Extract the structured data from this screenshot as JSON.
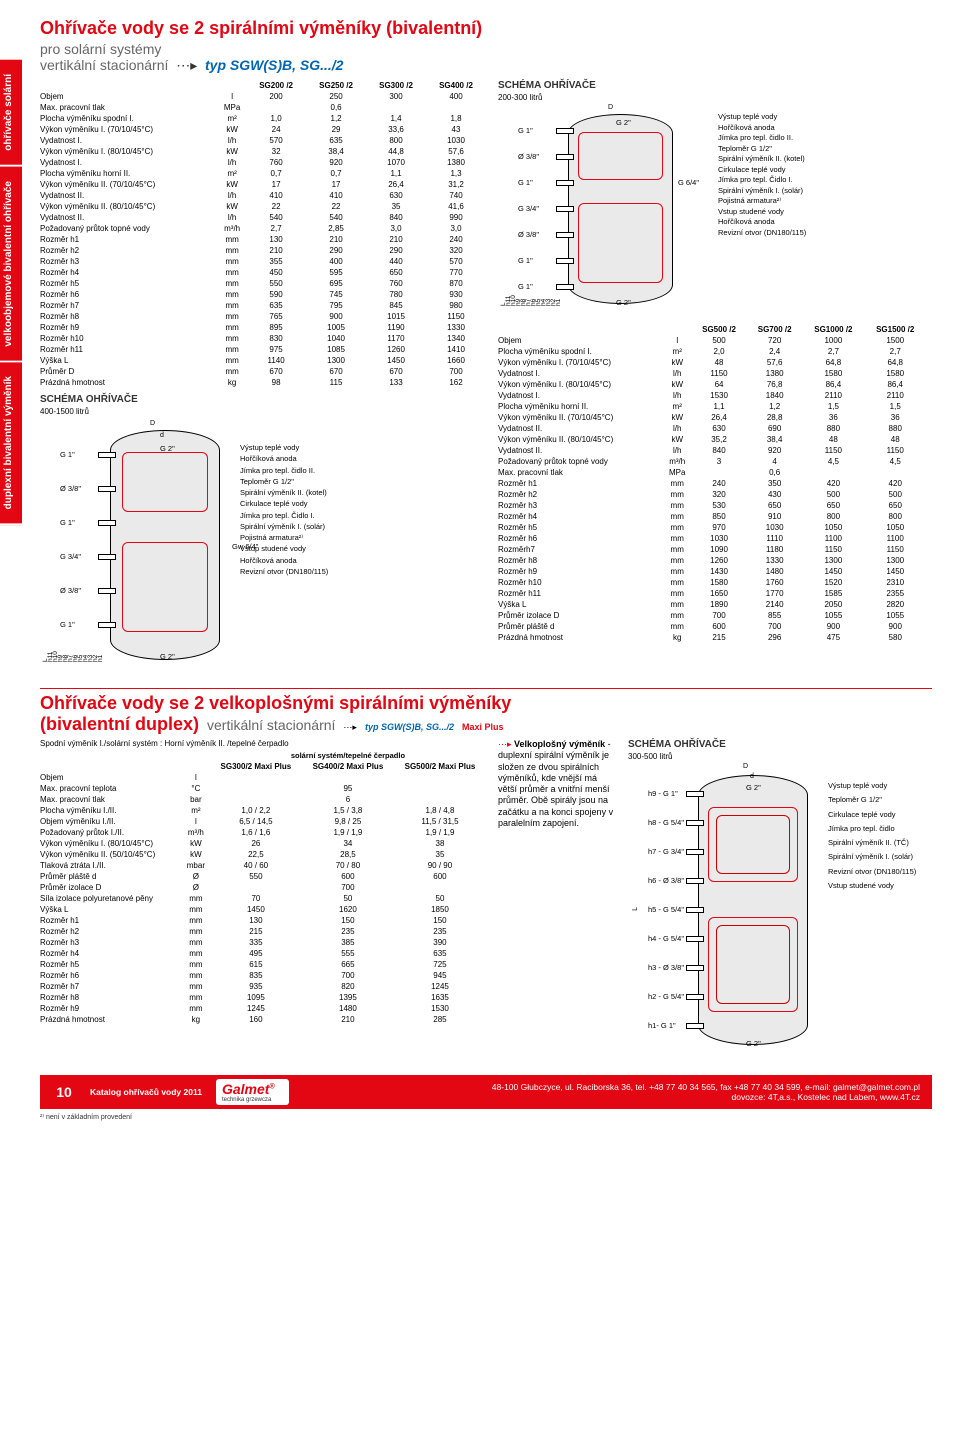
{
  "colors": {
    "brand_red": "#e30613",
    "brand_blue": "#0066b3",
    "gray": "#666"
  },
  "side_tabs": [
    "ohřívače solární",
    "velkoobjemové bivalentní ohřívače",
    "duplexní bivalentní výměník"
  ],
  "section1": {
    "title": "Ohřívače vody se 2 spirálními výměníky (bivalentní)",
    "sub1": "pro solární systémy",
    "sub2": "vertikální stacionární",
    "type": "typ SGW(S)B, SG.../2",
    "tableA": {
      "headers": [
        "SG200 /2",
        "SG250 /2",
        "SG300 /2",
        "SG400 /2"
      ],
      "rows": [
        [
          "Objem",
          "l",
          "200",
          "250",
          "300",
          "400"
        ],
        [
          "Max. pracovní tlak",
          "MPa",
          "",
          "0,6",
          "",
          ""
        ],
        [
          "Plocha výměníku spodní I.",
          "m²",
          "1,0",
          "1,2",
          "1,4",
          "1,8"
        ],
        [
          "Výkon výměníku I. (70/10/45°C)",
          "kW",
          "24",
          "29",
          "33,6",
          "43"
        ],
        [
          "Vydatnost I.",
          "l/h",
          "570",
          "635",
          "800",
          "1030"
        ],
        [
          "Výkon výměníku I. (80/10/45°C)",
          "kW",
          "32",
          "38,4",
          "44,8",
          "57,6"
        ],
        [
          "Vydatnost I.",
          "l/h",
          "760",
          "920",
          "1070",
          "1380"
        ],
        [
          "Plocha výměníku horní II.",
          "m²",
          "0,7",
          "0,7",
          "1,1",
          "1,3"
        ],
        [
          "Výkon výměníku II. (70/10/45°C)",
          "kW",
          "17",
          "17",
          "26,4",
          "31,2"
        ],
        [
          "Vydatnost II.",
          "l/h",
          "410",
          "410",
          "630",
          "740"
        ],
        [
          "Výkon výměníku II. (80/10/45°C)",
          "kW",
          "22",
          "22",
          "35",
          "41,6"
        ],
        [
          "Vydatnost II.",
          "l/h",
          "540",
          "540",
          "840",
          "990"
        ],
        [
          "Požadovaný průtok topné vody",
          "m³/h",
          "2,7",
          "2,85",
          "3,0",
          "3,0"
        ],
        [
          "Rozměr h1",
          "mm",
          "130",
          "210",
          "210",
          "240"
        ],
        [
          "Rozměr h2",
          "mm",
          "210",
          "290",
          "290",
          "320"
        ],
        [
          "Rozměr h3",
          "mm",
          "355",
          "400",
          "440",
          "570"
        ],
        [
          "Rozměr h4",
          "mm",
          "450",
          "595",
          "650",
          "770"
        ],
        [
          "Rozměr h5",
          "mm",
          "550",
          "695",
          "760",
          "870"
        ],
        [
          "Rozměr h6",
          "mm",
          "590",
          "745",
          "780",
          "930"
        ],
        [
          "Rozměr h7",
          "mm",
          "635",
          "795",
          "845",
          "980"
        ],
        [
          "Rozměr h8",
          "mm",
          "765",
          "900",
          "1015",
          "1150"
        ],
        [
          "Rozměr h9",
          "mm",
          "895",
          "1005",
          "1190",
          "1330"
        ],
        [
          "Rozměr h10",
          "mm",
          "830",
          "1040",
          "1170",
          "1340"
        ],
        [
          "Rozměr h11",
          "mm",
          "975",
          "1085",
          "1260",
          "1410"
        ],
        [
          "Výška L",
          "mm",
          "1140",
          "1300",
          "1450",
          "1660"
        ],
        [
          "Průměr D",
          "mm",
          "670",
          "670",
          "670",
          "700"
        ],
        [
          "Prázdná hmotnost",
          "kg",
          "98",
          "115",
          "133",
          "162"
        ]
      ]
    },
    "schemaA_title": "SCHÉMA OHŘÍVAČE",
    "schemaA_note": "400-1500 litrů",
    "schemaB_title": "SCHÉMA OHŘÍVAČE",
    "schemaB_note": "200-300 litrů",
    "legend_right": [
      "Výstup teplé vody",
      "Hořčíková anoda",
      "Jímka pro tepl. čidlo II.",
      "Teploměr G 1/2\"",
      "Spirální výměník II. (kotel)",
      "Cirkulace teplé vody",
      "Jímka pro tepl. Čidlo I.",
      "Spirální výměník I. (solár)",
      "Pojistná armatura²⁾",
      "Vstup studené vody",
      "Hořčíková anoda",
      "Revizní otvor (DN180/115)"
    ],
    "ports_left": [
      "G 1\"",
      "Ø 3/8\"",
      "G 1\"",
      "G 3/4\"",
      "Ø 3/8\"",
      "G 1\""
    ],
    "ports_leftB": [
      "G 1\"",
      "Ø 3/8\"",
      "G 1\"",
      "G 3/4\"",
      "Ø 3/8\"",
      "G 1\"",
      "G 1\""
    ],
    "ports_rightB": [
      "G 6/4\""
    ],
    "top_dims": [
      "D",
      "d",
      "G 2\"",
      "G 2\""
    ],
    "dim_marks": [
      "L",
      "h11",
      "h10",
      "h9",
      "h8",
      "h7",
      "h6",
      "h5",
      "h4",
      "h3",
      "h2",
      "h1"
    ],
    "tableB": {
      "headers": [
        "SG500 /2",
        "SG700 /2",
        "SG1000 /2",
        "SG1500 /2"
      ],
      "rows": [
        [
          "Objem",
          "l",
          "500",
          "720",
          "1000",
          "1500"
        ],
        [
          "Plocha výměníku spodní I.",
          "m²",
          "2,0",
          "2,4",
          "2,7",
          "2,7"
        ],
        [
          "Výkon výměníku I. (70/10/45°C)",
          "kW",
          "48",
          "57,6",
          "64,8",
          "64,8"
        ],
        [
          "Vydatnost I.",
          "l/h",
          "1150",
          "1380",
          "1580",
          "1580"
        ],
        [
          "Výkon výměníku I. (80/10/45°C)",
          "kW",
          "64",
          "76,8",
          "86,4",
          "86,4"
        ],
        [
          "Vydatnost I.",
          "l/h",
          "1530",
          "1840",
          "2110",
          "2110"
        ],
        [
          "Plocha výměníku horní II.",
          "m²",
          "1,1",
          "1,2",
          "1,5",
          "1,5"
        ],
        [
          "Výkon výměníku II. (70/10/45°C)",
          "kW",
          "26,4",
          "28,8",
          "36",
          "36"
        ],
        [
          "Vydatnost II.",
          "l/h",
          "630",
          "690",
          "880",
          "880"
        ],
        [
          "Výkon výměníku II. (80/10/45°C)",
          "kW",
          "35,2",
          "38,4",
          "48",
          "48"
        ],
        [
          "Vydatnost II.",
          "l/h",
          "840",
          "920",
          "1150",
          "1150"
        ],
        [
          "Požadovaný průtok topné vody",
          "m³/h",
          "3",
          "4",
          "4,5",
          "4,5"
        ],
        [
          "Max. pracovní tlak",
          "MPa",
          "",
          "0,6",
          "",
          ""
        ],
        [
          "Rozměr h1",
          "mm",
          "240",
          "350",
          "420",
          "420"
        ],
        [
          "Rozměr h2",
          "mm",
          "320",
          "430",
          "500",
          "500"
        ],
        [
          "Rozměr h3",
          "mm",
          "530",
          "650",
          "650",
          "650"
        ],
        [
          "Rozměr h4",
          "mm",
          "850",
          "910",
          "800",
          "800"
        ],
        [
          "Rozměr h5",
          "mm",
          "970",
          "1030",
          "1050",
          "1050"
        ],
        [
          "Rozměr h6",
          "mm",
          "1030",
          "1110",
          "1100",
          "1100"
        ],
        [
          "Rozměrh7",
          "mm",
          "1090",
          "1180",
          "1150",
          "1150"
        ],
        [
          "Rozměr h8",
          "mm",
          "1260",
          "1330",
          "1300",
          "1300"
        ],
        [
          "Rozměr h9",
          "mm",
          "1430",
          "1480",
          "1450",
          "1450"
        ],
        [
          "Rozměr h10",
          "mm",
          "1580",
          "1760",
          "1520",
          "2310"
        ],
        [
          "Rozměr h11",
          "mm",
          "1650",
          "1770",
          "1585",
          "2355"
        ],
        [
          "Výška L",
          "mm",
          "1890",
          "2140",
          "2050",
          "2820"
        ],
        [
          "Průměr izolace D",
          "mm",
          "700",
          "855",
          "1055",
          "1055"
        ],
        [
          "Průměr pláště d",
          "mm",
          "600",
          "700",
          "900",
          "900"
        ],
        [
          "Prázdná hmotnost",
          "kg",
          "215",
          "296",
          "475",
          "580"
        ]
      ]
    }
  },
  "section2": {
    "title": "Ohřívače vody se 2 velkoplošnými spirálními výměníky",
    "title2": "(bivalentní duplex)",
    "sub": "vertikální stacionární",
    "type": "typ SGW(S)B, SG.../2",
    "type_suffix": "Maxi Plus",
    "note_top": "Spodní výměník I./solární systém : Horní výměník II. /tepelné čerpadlo",
    "col_note": "solární systém/tepelné čerpadlo",
    "box_title": "Velkoplošný výměník",
    "box_text": "- duplexní spirální výměník je složen ze dvou spirálních výměníků, kde vnější má větší průměr a vnitřní menší průměr. Obě spirály jsou na začátku a na konci spojeny v paralelním zapojení.",
    "table": {
      "headers": [
        "SG300/2 Maxi Plus",
        "SG400/2 Maxi Plus",
        "SG500/2 Maxi Plus"
      ],
      "rows": [
        [
          "Objem",
          "l",
          "",
          "",
          ""
        ],
        [
          "Max. pracovní teplota",
          "°C",
          "",
          "95",
          ""
        ],
        [
          "Max. pracovní tlak",
          "bar",
          "",
          "6",
          ""
        ],
        [
          "Plocha výměníku I./II.",
          "m²",
          "1,0 / 2,2",
          "1,5 / 3,8",
          "1,8 / 4,8"
        ],
        [
          "Objem výměníku I./II.",
          "l",
          "6,5 / 14,5",
          "9,8 / 25",
          "11,5 / 31,5"
        ],
        [
          "Požadovaný průtok I./II.",
          "m³/h",
          "1,6 / 1,6",
          "1,9 / 1,9",
          "1,9 / 1,9"
        ],
        [
          "Výkon výměníku I. (80/10/45°C)",
          "kW",
          "26",
          "34",
          "38"
        ],
        [
          "Výkon výměníku II. (50/10/45°C)",
          "kW",
          "22,5",
          "28,5",
          "35"
        ],
        [
          "Tlaková ztráta I./II.",
          "mbar",
          "40 / 60",
          "70 / 80",
          "90 / 90"
        ],
        [
          "Průměr pláště d",
          "Ø",
          "550",
          "600",
          "600"
        ],
        [
          "Průměr izolace D",
          "Ø",
          "",
          "700",
          ""
        ],
        [
          "Síla izolace polyuretanové pěny",
          "mm",
          "70",
          "50",
          "50"
        ],
        [
          "Výška L",
          "mm",
          "1450",
          "1620",
          "1850"
        ],
        [
          "Rozměr h1",
          "mm",
          "130",
          "150",
          "150"
        ],
        [
          "Rozměr h2",
          "mm",
          "215",
          "235",
          "235"
        ],
        [
          "Rozměr h3",
          "mm",
          "335",
          "385",
          "390"
        ],
        [
          "Rozměr h4",
          "mm",
          "495",
          "555",
          "635"
        ],
        [
          "Rozměr h5",
          "mm",
          "615",
          "665",
          "725"
        ],
        [
          "Rozměr h6",
          "mm",
          "835",
          "700",
          "945"
        ],
        [
          "Rozměr h7",
          "mm",
          "935",
          "820",
          "1245"
        ],
        [
          "Rozměr h8",
          "mm",
          "1095",
          "1395",
          "1635"
        ],
        [
          "Rozměr h9",
          "mm",
          "1245",
          "1480",
          "1530"
        ],
        [
          "Prázdná hmotnost",
          "kg",
          "160",
          "210",
          "285"
        ]
      ]
    },
    "schema_title": "SCHÉMA OHŘÍVAČE",
    "schema_note": "300-500 litrů",
    "legend_right": [
      "Výstup teplé vody",
      "Teploměr G 1/2\"",
      "Cirkulace teplé vody",
      "Jímka pro tepl. čidlo",
      "Spirální výměník II. (TČ)",
      "Spirální výměník I. (solár)",
      "Revizní otvor (DN180/115)",
      "Vstup studené vody"
    ],
    "ports_left": [
      "h9 - G 1\"",
      "h8 - G 5/4\"",
      "h7 - G 3/4\"",
      "h6 - Ø 3/8\"",
      "h5 - G 5/4\"",
      "h4 - G 5/4\"",
      "h3 - Ø 3/8\"",
      "h2 - G 5/4\"",
      "h1- G 1\""
    ],
    "top": [
      "D",
      "d",
      "G 2\"",
      "G 2\""
    ]
  },
  "footer": {
    "page": "10",
    "catalog": "Katalog ohřívačů vody 2011",
    "logo": "Galmet",
    "tag": "technika grzewcza",
    "addr": "48-100 Głubczyce, ul. Raciborska 36, tel. +48 77 40 34 565, fax +48 77 40 34 599, e-mail: galmet@galmet.com.pl\ndovozce: 4T,a.s., Kostelec nad Labem, www.4T.cz"
  },
  "footnote": "²⁾ není v základním provedení"
}
